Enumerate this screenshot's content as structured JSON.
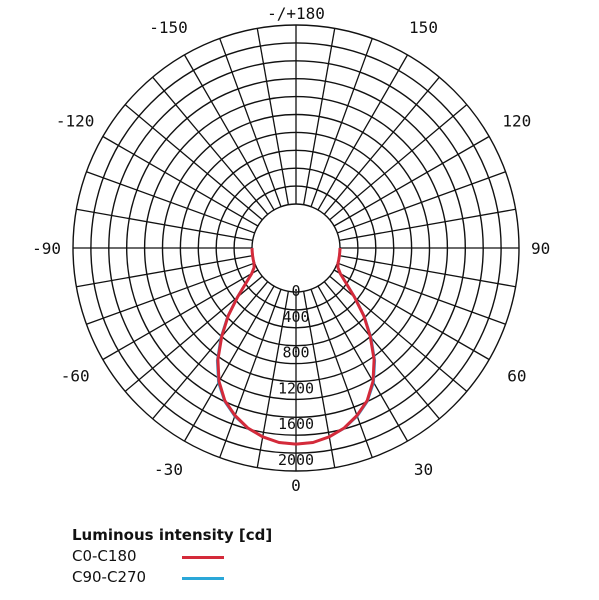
{
  "chart_data": {
    "type": "polar",
    "angle_labels": [
      "-/+180",
      "-150",
      "150",
      "-120",
      "120",
      "-90",
      "90",
      "-60",
      "60",
      "-30",
      "30",
      "0"
    ],
    "angle_label_values": [
      180,
      -150,
      150,
      -120,
      120,
      -90,
      90,
      -60,
      60,
      -30,
      30,
      0
    ],
    "radial_labels": [
      "0",
      "400",
      "800",
      "1200",
      "1600",
      "2000"
    ],
    "radial_values": [
      0,
      400,
      800,
      1200,
      1600,
      2000
    ],
    "r_range": [
      0,
      2000
    ],
    "angle_step": 10,
    "series": [
      {
        "name": "C0-C180",
        "color": "#d42a3a",
        "angles": [
          0,
          5,
          10,
          15,
          20,
          25,
          30,
          35,
          40,
          45,
          50,
          55,
          60,
          65,
          70,
          75,
          80,
          85,
          90
        ],
        "values": [
          1700,
          1690,
          1650,
          1590,
          1500,
          1390,
          1230,
          1030,
          800,
          580,
          360,
          190,
          80,
          25,
          8,
          3,
          1,
          0,
          0
        ]
      },
      {
        "name": "C90-C270",
        "color": "#2aa7d8",
        "angles": [
          0,
          5,
          10,
          15,
          20,
          25,
          30,
          35,
          40,
          45,
          50,
          55,
          60,
          65,
          70,
          75,
          80,
          85,
          90
        ],
        "values": [
          1700,
          1690,
          1650,
          1595,
          1510,
          1400,
          1245,
          1045,
          815,
          590,
          370,
          195,
          82,
          26,
          8,
          3,
          1,
          0,
          0
        ]
      }
    ]
  },
  "legend": {
    "title": "Luminous intensity [cd]",
    "items": [
      {
        "label": "C0-C180",
        "color": "#d42a3a"
      },
      {
        "label": "C90-C270",
        "color": "#2aa7d8"
      }
    ]
  }
}
